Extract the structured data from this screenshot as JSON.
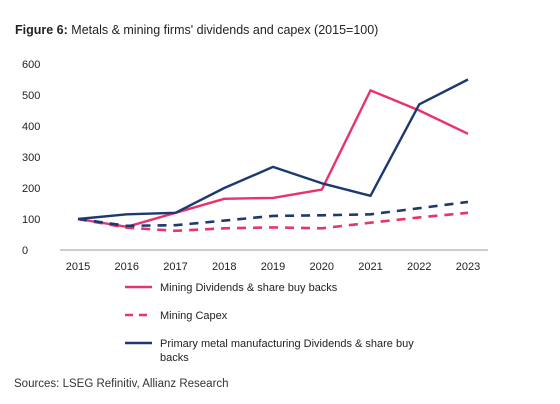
{
  "figure": {
    "label": "Figure 6:",
    "title": "Metals & mining firms' dividends and capex (2015=100)",
    "source": "Sources: LSEG Refinitiv, Allianz Research"
  },
  "chart_data": {
    "type": "line",
    "title": "Metals & mining firms' dividends and capex (2015=100)",
    "xlabel": "",
    "ylabel": "",
    "x": [
      "2015",
      "2016",
      "2017",
      "2018",
      "2019",
      "2020",
      "2021",
      "2022",
      "2023"
    ],
    "yticks": [
      "0",
      "100",
      "200",
      "300",
      "400",
      "500",
      "600"
    ],
    "ylim": [
      0,
      600
    ],
    "grid": false,
    "legend_position": "bottom",
    "series": [
      {
        "name": "Mining Dividends & share buy backs",
        "color": "#e8336b",
        "style": "solid",
        "values": [
          100,
          75,
          120,
          165,
          168,
          195,
          515,
          450,
          375
        ]
      },
      {
        "name": "Mining Capex",
        "color": "#e8336b",
        "style": "dashed",
        "values": [
          100,
          72,
          62,
          70,
          73,
          70,
          88,
          105,
          120
        ]
      },
      {
        "name": "Primary metal manufacturing Dividends & share buy backs",
        "color": "#1c3a70",
        "style": "solid",
        "values": [
          100,
          115,
          120,
          200,
          268,
          215,
          175,
          470,
          550
        ]
      },
      {
        "name": "",
        "color": "#1c3a70",
        "style": "dashed",
        "values": [
          100,
          78,
          80,
          95,
          110,
          112,
          115,
          135,
          155
        ]
      }
    ],
    "legend": [
      {
        "label": "Mining Dividends & share buy backs",
        "series": 0
      },
      {
        "label": "Mining Capex",
        "series": 1
      },
      {
        "label": "Primary metal manufacturing Dividends & share buy backs",
        "series": 2
      }
    ]
  }
}
